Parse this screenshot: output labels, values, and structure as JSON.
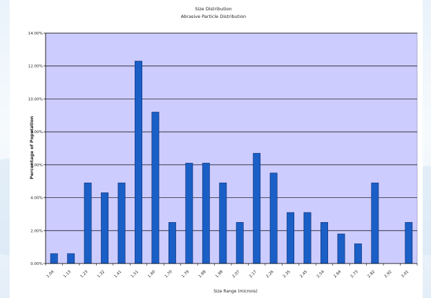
{
  "chart_data": {
    "type": "bar",
    "title": "Size Distribution",
    "subtitle": "Abrasive Particle Distribution",
    "xlabel": "Size Range (microns)",
    "ylabel": "Percentage of Population",
    "categories": [
      "1.04",
      "1.13",
      "1.23",
      "1.32",
      "1.41",
      "1.51",
      "1.60",
      "1.70",
      "1.79",
      "1.88",
      "1.98",
      "2.07",
      "2.17",
      "2.26",
      "2.35",
      "2.45",
      "2.54",
      "2.64",
      "2.73",
      "2.82",
      "2.92",
      "3.01"
    ],
    "values": [
      0.6,
      0.6,
      4.9,
      4.3,
      4.9,
      12.3,
      9.2,
      2.5,
      6.1,
      6.1,
      4.9,
      2.5,
      6.7,
      5.5,
      3.1,
      3.1,
      2.5,
      1.8,
      1.2,
      4.9,
      0,
      2.5
    ],
    "ylim": [
      0,
      14
    ],
    "yticks": [
      "0.00%",
      "2.00%",
      "4.00%",
      "6.00%",
      "8.00%",
      "10.00%",
      "12.00%",
      "14.00%"
    ],
    "grid": true,
    "colors": {
      "plot_bg": "#ccccff",
      "bar_fill": "#1a5fc6",
      "bar_stroke": "#0a2a6a",
      "grid": "#000000"
    }
  }
}
